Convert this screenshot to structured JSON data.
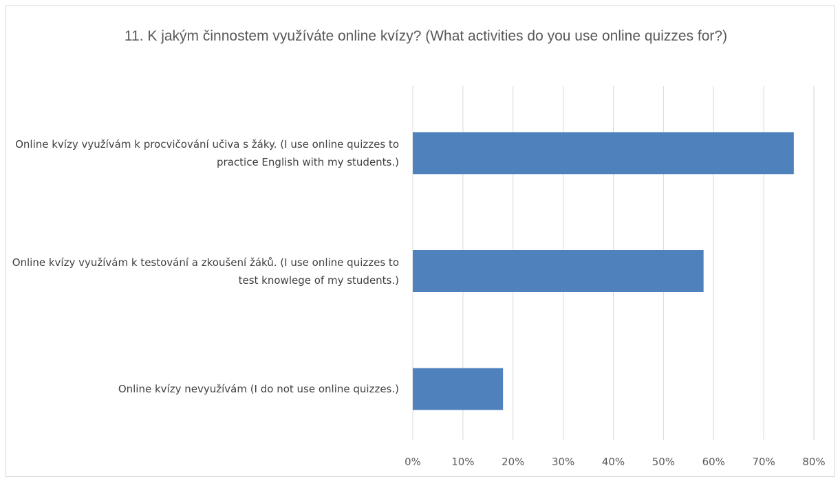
{
  "chart_data": {
    "type": "bar",
    "orientation": "horizontal",
    "title": "11. K jakým činnostem využíváte online kvízy? (What activities do you use online quizzes for?)",
    "xlabel": "",
    "ylabel": "",
    "categories": [
      "Online kvízy využívám k procvičování učiva s žáky. (I use online quizzes to practice English with my students.)",
      "Online kvízy využívám k testování a zkoušení žáků. (I use online quizzes to test knowlege of my students.)",
      "Online kvízy nevyužívám (I do not use online quizzes.)"
    ],
    "values": [
      76,
      58,
      18
    ],
    "xlim": [
      0,
      80
    ],
    "x_ticks": [
      "0%",
      "10%",
      "20%",
      "30%",
      "40%",
      "50%",
      "60%",
      "70%",
      "80%"
    ],
    "grid": true,
    "legend": "none",
    "bar_color": "#4F81BD"
  }
}
